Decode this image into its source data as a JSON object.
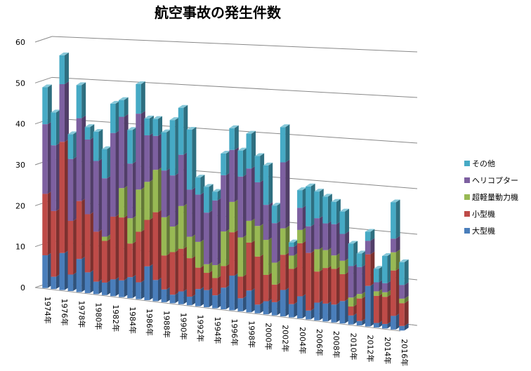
{
  "chart_data": {
    "type": "bar",
    "stacked": true,
    "style": "3d-stacked-column",
    "title": "航空事故の発生件数",
    "xlabel": "",
    "ylabel": "",
    "ylim": [
      0,
      60
    ],
    "yticks": [
      "0",
      "10",
      "20",
      "30",
      "40",
      "50",
      "60"
    ],
    "grid": true,
    "legend_position": "right",
    "categories": [
      "1974年",
      "1975年",
      "1976年",
      "1977年",
      "1978年",
      "1979年",
      "1980年",
      "1981年",
      "1982年",
      "1983年",
      "1984年",
      "1985年",
      "1986年",
      "1987年",
      "1988年",
      "1989年",
      "1990年",
      "1991年",
      "1992年",
      "1993年",
      "1994年",
      "1995年",
      "1996年",
      "1997年",
      "1998年",
      "1999年",
      "2000年",
      "2001年",
      "2002年",
      "2003年",
      "2004年",
      "2005年",
      "2006年",
      "2007年",
      "2008年",
      "2009年",
      "2010年",
      "2011年",
      "2012年",
      "2013年",
      "2014年",
      "2015年",
      "2016年"
    ],
    "xtick_labels": [
      "1974年",
      "1976年",
      "1978年",
      "1980年",
      "1982年",
      "1984年",
      "1986年",
      "1988年",
      "1990年",
      "1992年",
      "1994年",
      "1996年",
      "1998年",
      "2000年",
      "2002年",
      "2004年",
      "2006年",
      "2008年",
      "2010年",
      "2012年",
      "2014年",
      "2016年"
    ],
    "series": [
      {
        "name": "大型機",
        "color": "#4a7ebb",
        "values": [
          8,
          3,
          9,
          4,
          8,
          5,
          3,
          3,
          4,
          4,
          5,
          4,
          8,
          5,
          3,
          2,
          3,
          2,
          4,
          4,
          3,
          5,
          8,
          3,
          5,
          2,
          3,
          3,
          6,
          3,
          5,
          2,
          4,
          4,
          4,
          5,
          2,
          1,
          9,
          1,
          1,
          3,
          1
        ]
      },
      {
        "name": "小型機",
        "color": "#be4b48",
        "values": [
          15,
          16,
          27,
          13,
          14,
          14,
          12,
          10,
          15,
          15,
          8,
          12,
          11,
          16,
          8,
          10,
          10,
          9,
          5,
          4,
          4,
          5,
          10,
          5,
          11,
          11,
          6,
          4,
          8,
          8,
          12,
          13,
          7,
          8,
          8,
          6,
          2,
          5,
          7,
          6,
          6,
          10,
          5
        ]
      },
      {
        "name": "超軽量動力機",
        "color": "#98b954",
        "values": [
          0,
          0,
          0,
          0,
          0,
          0,
          0,
          1,
          0,
          7,
          6,
          10,
          9,
          10,
          9,
          6,
          10,
          5,
          6,
          2,
          3,
          8,
          7,
          9,
          5,
          7,
          8,
          5,
          6,
          3,
          3,
          0,
          5,
          4,
          3,
          3,
          2,
          1,
          0,
          1,
          1,
          4,
          1
        ]
      },
      {
        "name": "ヘリコプター",
        "color": "#7d60a0",
        "values": [
          17,
          16,
          14,
          15,
          20,
          18,
          17,
          14,
          20,
          17,
          13,
          18,
          11,
          8,
          11,
          12,
          12,
          11,
          11,
          12,
          15,
          13,
          12,
          14,
          12,
          10,
          8,
          9,
          15,
          2,
          5,
          6,
          7,
          6,
          7,
          6,
          7,
          6,
          3,
          2,
          2,
          3,
          3
        ]
      },
      {
        "name": "その他",
        "color": "#46aac5",
        "values": [
          9,
          8,
          7,
          6,
          8,
          3,
          7,
          7,
          7,
          4,
          8,
          7,
          4,
          4,
          9,
          13,
          11,
          14,
          4,
          6,
          2,
          5,
          5,
          6,
          8,
          6,
          9,
          4,
          8,
          1,
          4,
          9,
          6,
          6,
          5,
          5,
          5,
          3,
          2,
          3,
          6,
          8,
          5
        ]
      }
    ]
  }
}
